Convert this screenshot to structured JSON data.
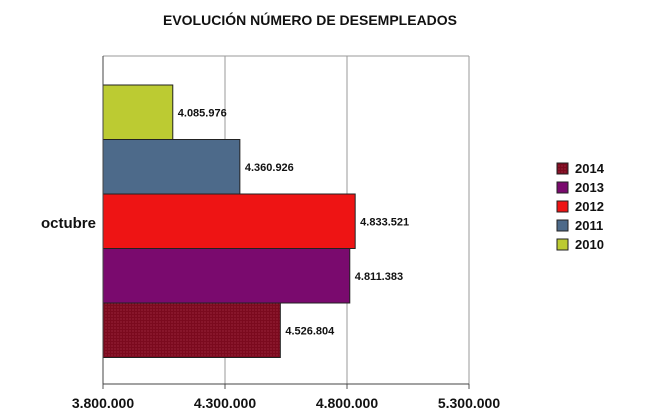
{
  "chart_data": {
    "type": "bar",
    "orientation": "horizontal",
    "title": "EVOLUCIÓN NÚMERO DE DESEMPLEADOS",
    "categories": [
      "octubre"
    ],
    "series": [
      {
        "name": "2014",
        "values": [
          4526804
        ],
        "label": "4.526.804",
        "color": "#7b0a1e",
        "pattern": "dotted"
      },
      {
        "name": "2013",
        "values": [
          4811383
        ],
        "label": "4.811.383",
        "color": "#7a0a6e"
      },
      {
        "name": "2012",
        "values": [
          4833521
        ],
        "label": "4.833.521",
        "color": "#ee1414"
      },
      {
        "name": "2011",
        "values": [
          4360926
        ],
        "label": "4.360.926",
        "color": "#4d6a8a"
      },
      {
        "name": "2010",
        "values": [
          4085976
        ],
        "label": "4.085.976",
        "color": "#bccb32"
      }
    ],
    "xlim": [
      3800000,
      5300000
    ],
    "xticks": [
      {
        "value": 3800000,
        "label": "3.800.000"
      },
      {
        "value": 4300000,
        "label": "4.300.000"
      },
      {
        "value": 4800000,
        "label": "4.800.000"
      },
      {
        "value": 5300000,
        "label": "5.300.000"
      }
    ],
    "grid": true,
    "legend": "right",
    "legend_order": [
      "2014",
      "2013",
      "2012",
      "2011",
      "2010"
    ]
  }
}
